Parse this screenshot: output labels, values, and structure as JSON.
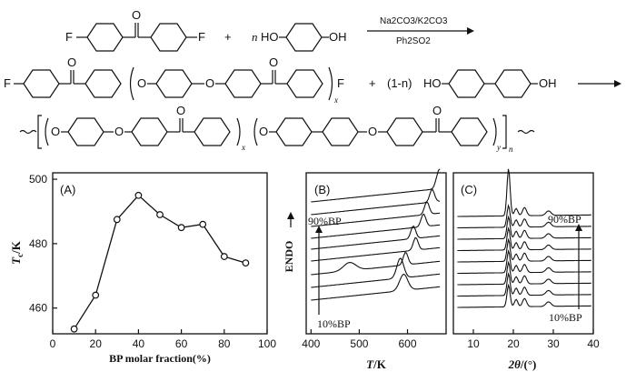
{
  "scheme": {
    "reagent_top": "Na2CO3/K2CO3",
    "reagent_bottom": "Ph2SO2",
    "atom_F": "F",
    "atom_O": "O",
    "atom_HO": "HO",
    "atom_OH": "OH",
    "n_coeff": "n",
    "plus": "+",
    "one_minus_n": "(1-n)",
    "sub_x": "x",
    "sub_y": "y",
    "sub_n": "n"
  },
  "chart_data": [
    {
      "type": "line",
      "panel_label": "(A)",
      "xlabel": "BP molar fraction(%)",
      "ylabel_main": "T",
      "ylabel_sub": "c",
      "ylabel_unit": "/K",
      "x": [
        10,
        20,
        30,
        40,
        50,
        60,
        70,
        80,
        90
      ],
      "values": [
        453.5,
        464,
        487.5,
        495,
        489,
        485,
        486,
        476,
        474
      ],
      "xlim": [
        0,
        100
      ],
      "ylim": [
        452,
        502
      ],
      "xticks": [
        "0",
        "20",
        "40",
        "60",
        "80",
        "100"
      ],
      "yticks": [
        "460",
        "480",
        "500"
      ],
      "xtick_values": [
        0,
        20,
        40,
        60,
        80,
        100
      ],
      "ytick_values": [
        460,
        480,
        500
      ],
      "marker": "open-circle",
      "grid": false
    },
    {
      "type": "line",
      "panel_label": "(B)",
      "xlabel_main": "T",
      "xlabel_unit": "/K",
      "ylabel": "ENDO",
      "top_label": "90%BP",
      "bottom_label": "10%BP",
      "xlim": [
        390,
        680
      ],
      "xticks": [
        "400",
        "500",
        "600"
      ],
      "xtick_values": [
        400,
        500,
        600
      ],
      "series_count": 9,
      "grid": false
    },
    {
      "type": "line",
      "panel_label": "(C)",
      "xlabel_main": "2θ",
      "xlabel_unit": "/(°)",
      "top_label": "90%BP",
      "bottom_label": "10%BP",
      "xlim": [
        5,
        40
      ],
      "xticks": [
        "10",
        "20",
        "30",
        "40"
      ],
      "xtick_values": [
        10,
        20,
        30,
        40
      ],
      "series_count": 9,
      "grid": false
    }
  ]
}
